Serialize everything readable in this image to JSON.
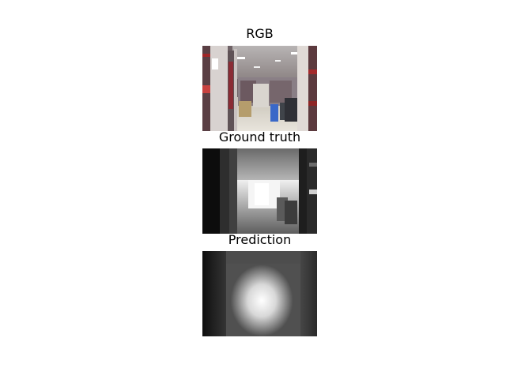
{
  "figure": {
    "panels": [
      {
        "title": "RGB",
        "image": "library-aisle-photo"
      },
      {
        "title": "Ground truth",
        "image": "grayscale-depth-map"
      },
      {
        "title": "Prediction",
        "image": "blurred-grayscale-depth-map"
      }
    ]
  }
}
